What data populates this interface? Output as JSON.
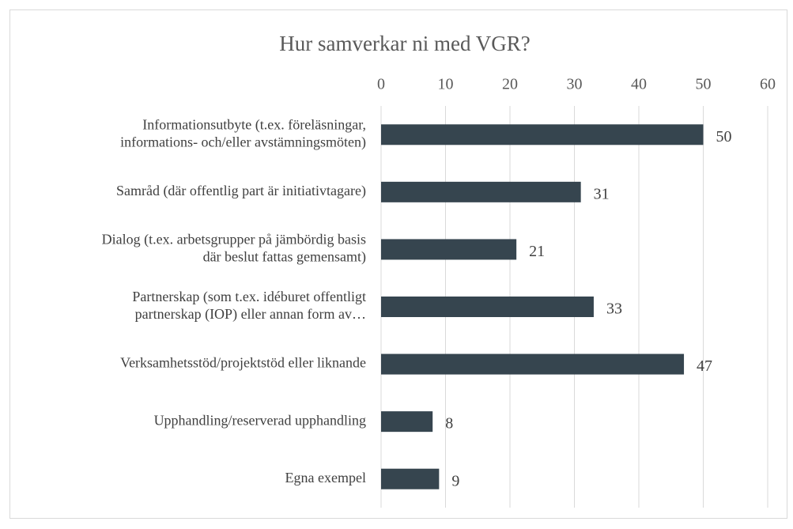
{
  "chart_data": {
    "type": "bar",
    "orientation": "horizontal",
    "title": "Hur samverkar ni med VGR?",
    "categories": [
      [
        "Informationsutbyte (t.ex. föreläsningar,",
        "informations- och/eller avstämningsmöten)"
      ],
      [
        "Samråd (där offentlig part är initiativtagare)"
      ],
      [
        "Dialog (t.ex. arbetsgrupper på jämbördig basis",
        "där beslut fattas gemensamt)"
      ],
      [
        "Partnerskap (som t.ex. idéburet offentligt",
        "partnerskap (IOP) eller annan form av…"
      ],
      [
        "Verksamhetsstöd/projektstöd eller liknande"
      ],
      [
        "Upphandling/reserverad upphandling"
      ],
      [
        "Egna exempel"
      ]
    ],
    "values": [
      50,
      31,
      21,
      33,
      47,
      8,
      9
    ],
    "color": "#36454f",
    "xlim": [
      0,
      60
    ],
    "xticks": [
      0,
      10,
      20,
      30,
      40,
      50,
      60
    ],
    "grid": true
  }
}
